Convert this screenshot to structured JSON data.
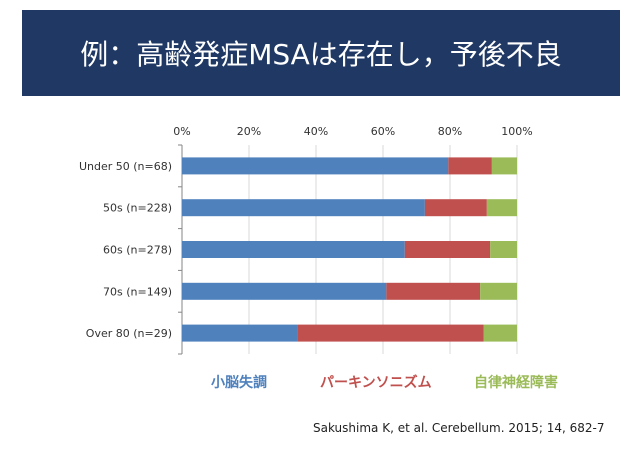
{
  "slide": {
    "title": "例：高齢発症MSAは存在し，予後不良"
  },
  "colors": {
    "header_bg": "#1f3864",
    "series": [
      "#4f81bd",
      "#c0504d",
      "#9bbb59"
    ]
  },
  "chart_data": {
    "type": "bar",
    "orientation": "horizontal",
    "stacked": true,
    "percent": true,
    "categories": [
      "Under 50 (n=68)",
      "50s (n=228)",
      "60s (n=278)",
      "70s (n=149)",
      "Over 80 (n=29)"
    ],
    "series": [
      {
        "name": "小脳失調",
        "values": [
          79.5,
          72.5,
          66.5,
          61,
          34.5
        ]
      },
      {
        "name": "パーキンソニズム",
        "values": [
          13,
          18.5,
          25.5,
          28,
          55.5
        ]
      },
      {
        "name": "自律神経障害",
        "values": [
          7.5,
          9,
          8,
          11,
          10
        ]
      }
    ],
    "xlim": [
      0,
      100
    ],
    "x_ticks": [
      "0%",
      "20%",
      "40%",
      "60%",
      "80%",
      "100%"
    ],
    "x_tick_values": [
      0,
      20,
      40,
      60,
      80,
      100
    ],
    "axis_position": "top",
    "title": "",
    "xlabel": "",
    "ylabel": ""
  },
  "legend": {
    "items": [
      "小脳失調",
      "パーキンソニズム",
      "自律神経障害"
    ]
  },
  "citation": "Sakushima K, et al. Cerebellum. 2015; 14, 682-7"
}
